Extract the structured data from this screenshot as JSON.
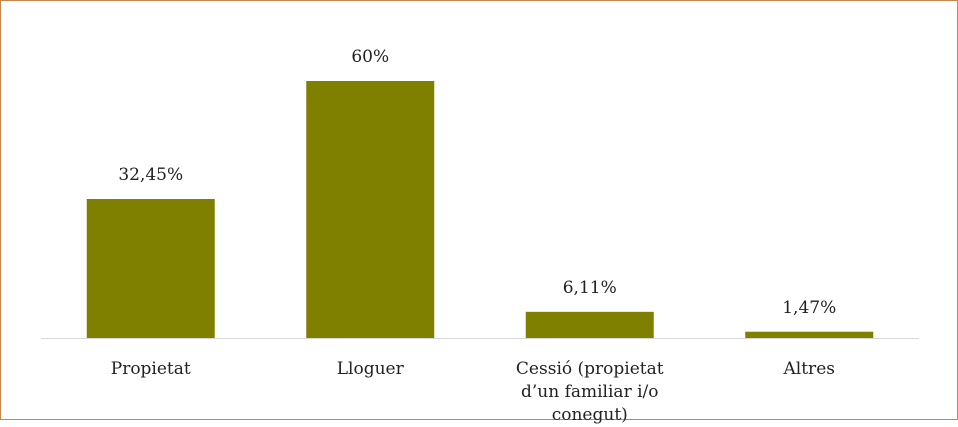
{
  "chart_data": {
    "type": "bar",
    "categories": [
      "Propietat",
      "Lloguer",
      "Cessió (propietat d’un familiar i/o conegut)",
      "Altres"
    ],
    "values": [
      32.45,
      60,
      6.11,
      1.47
    ],
    "value_labels": [
      "32,45%",
      "60%",
      "6,11%",
      "1,47%"
    ],
    "color": "#808000"
  }
}
